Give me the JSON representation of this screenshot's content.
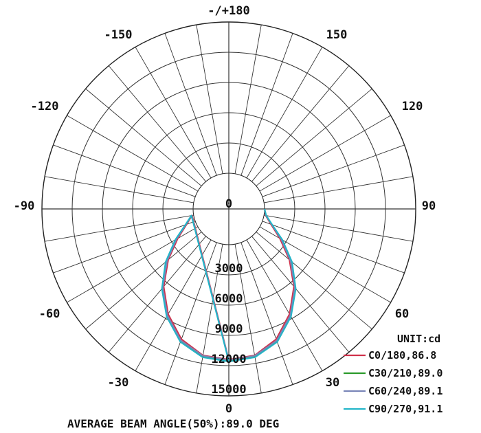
{
  "chart_data": {
    "type": "polar",
    "unit_label": "UNIT:cd",
    "footer": "AVERAGE BEAM ANGLE(50%):89.0 DEG",
    "angle_labels": [
      {
        "deg": 180,
        "text": "-/+180"
      },
      {
        "deg": -150,
        "text": "-150"
      },
      {
        "deg": 150,
        "text": "150"
      },
      {
        "deg": -120,
        "text": "-120"
      },
      {
        "deg": 120,
        "text": "120"
      },
      {
        "deg": -90,
        "text": "-90"
      },
      {
        "deg": 90,
        "text": "90"
      },
      {
        "deg": -60,
        "text": "-60"
      },
      {
        "deg": 60,
        "text": "60"
      },
      {
        "deg": -30,
        "text": "-30"
      },
      {
        "deg": 30,
        "text": "30"
      },
      {
        "deg": 0,
        "text": "0"
      }
    ],
    "center_label": "0",
    "rings": [
      3000,
      6000,
      9000,
      12000,
      15000
    ],
    "ring_labels": [
      "3000",
      "6000",
      "9000",
      "12000",
      "15000"
    ],
    "r_max": 15000,
    "angles_deg": [
      0,
      10,
      20,
      30,
      40,
      50,
      60,
      70,
      80,
      90
    ],
    "series": [
      {
        "name": "C0/180,86.8",
        "color": "#d0304a",
        "values": [
          11400,
          11200,
          10200,
          8500,
          6500,
          4300,
          2300,
          900,
          150,
          0
        ]
      },
      {
        "name": "C30/210,89.0",
        "color": "#2a9a2a",
        "values": [
          11500,
          11300,
          10400,
          8700,
          6700,
          4500,
          2500,
          1000,
          200,
          0
        ]
      },
      {
        "name": "C60/240,89.1",
        "color": "#7a86b8",
        "values": [
          11450,
          11250,
          10350,
          8650,
          6650,
          4450,
          2450,
          980,
          190,
          0
        ]
      },
      {
        "name": "C90/270,91.1",
        "color": "#22b5c8",
        "values": [
          11600,
          11400,
          10500,
          8800,
          6800,
          4650,
          2600,
          1050,
          230,
          0
        ]
      }
    ]
  }
}
